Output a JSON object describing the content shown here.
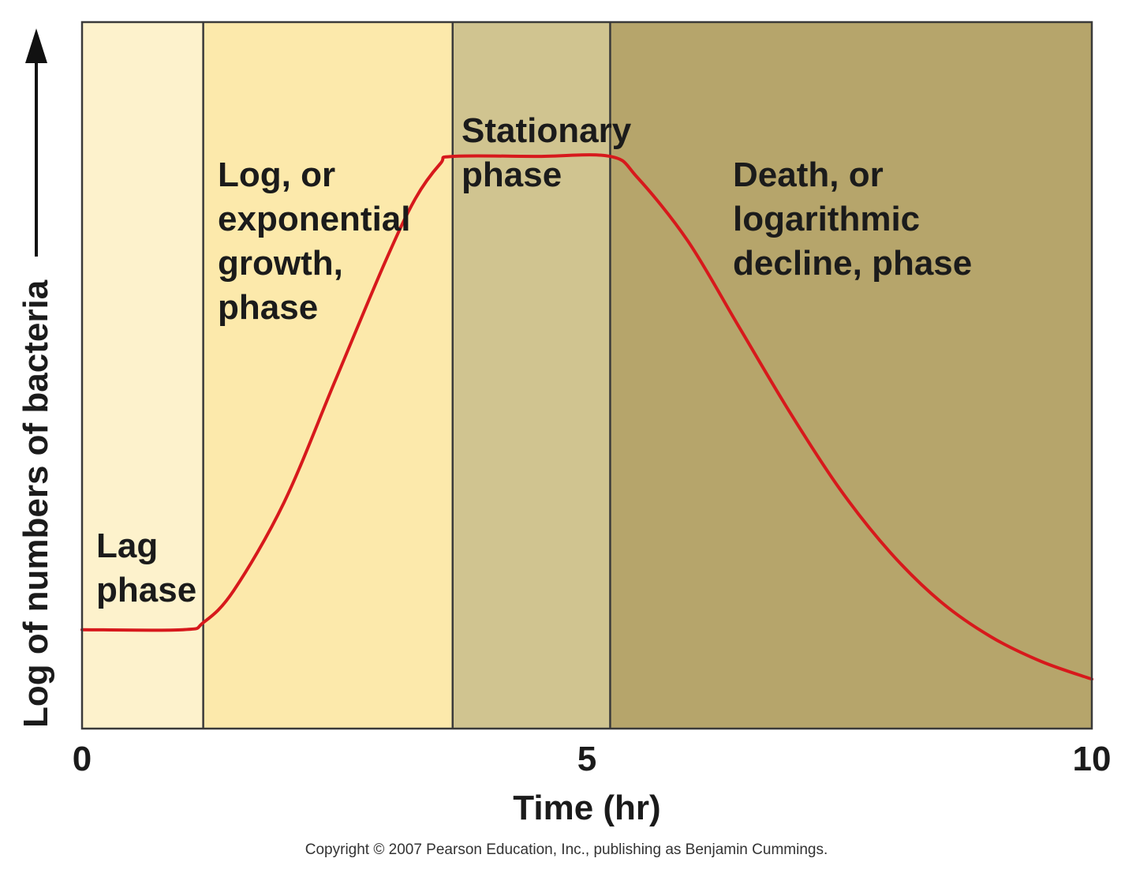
{
  "chart_data": {
    "type": "line",
    "title": "",
    "xlabel": "Time (hr)",
    "ylabel": "Log of numbers of bacteria",
    "xlim": [
      0,
      10
    ],
    "x_ticks": [
      "0",
      "5",
      "10"
    ],
    "x_tick_values": [
      0,
      5,
      10
    ],
    "y_scale": "log (qualitative, unlabeled)",
    "grid": false,
    "legend": "none",
    "phases": [
      {
        "name": "lag",
        "label_lines": [
          "Lag",
          "phase"
        ],
        "start": 0,
        "end": 1.2,
        "color": "#fdf2cc"
      },
      {
        "name": "log",
        "label_lines": [
          "Log, or",
          "exponential",
          "growth,",
          "phase"
        ],
        "start": 1.2,
        "end": 3.67,
        "color": "#fce9ab"
      },
      {
        "name": "stationary",
        "label_lines": [
          "Stationary",
          "phase"
        ],
        "start": 3.67,
        "end": 5.23,
        "color": "#d0c490"
      },
      {
        "name": "death",
        "label_lines": [
          "Death, or",
          "logarithmic",
          "decline, phase"
        ],
        "start": 5.23,
        "end": 10,
        "color": "#b6a56b"
      }
    ],
    "series": [
      {
        "color": "#d7191c",
        "x": [
          0,
          1.0,
          1.2,
          1.5,
          2.0,
          2.5,
          3.0,
          3.3,
          3.55,
          3.67,
          4.5,
          5.23,
          5.5,
          6.0,
          6.5,
          7.0,
          7.5,
          8.0,
          8.5,
          9.0,
          9.5,
          10
        ],
        "y": [
          1.4,
          1.4,
          1.5,
          1.95,
          3.2,
          4.9,
          6.6,
          7.5,
          8.0,
          8.1,
          8.1,
          8.1,
          7.8,
          6.9,
          5.7,
          4.5,
          3.4,
          2.5,
          1.8,
          1.3,
          0.95,
          0.7
        ]
      }
    ],
    "ylim": [
      0,
      10
    ]
  },
  "colors": {
    "curve": "#d7191c",
    "border": "#3a3a3a",
    "text": "#1b1b1b"
  },
  "copyright": "Copyright © 2007 Pearson Education, Inc., publishing as Benjamin Cummings."
}
